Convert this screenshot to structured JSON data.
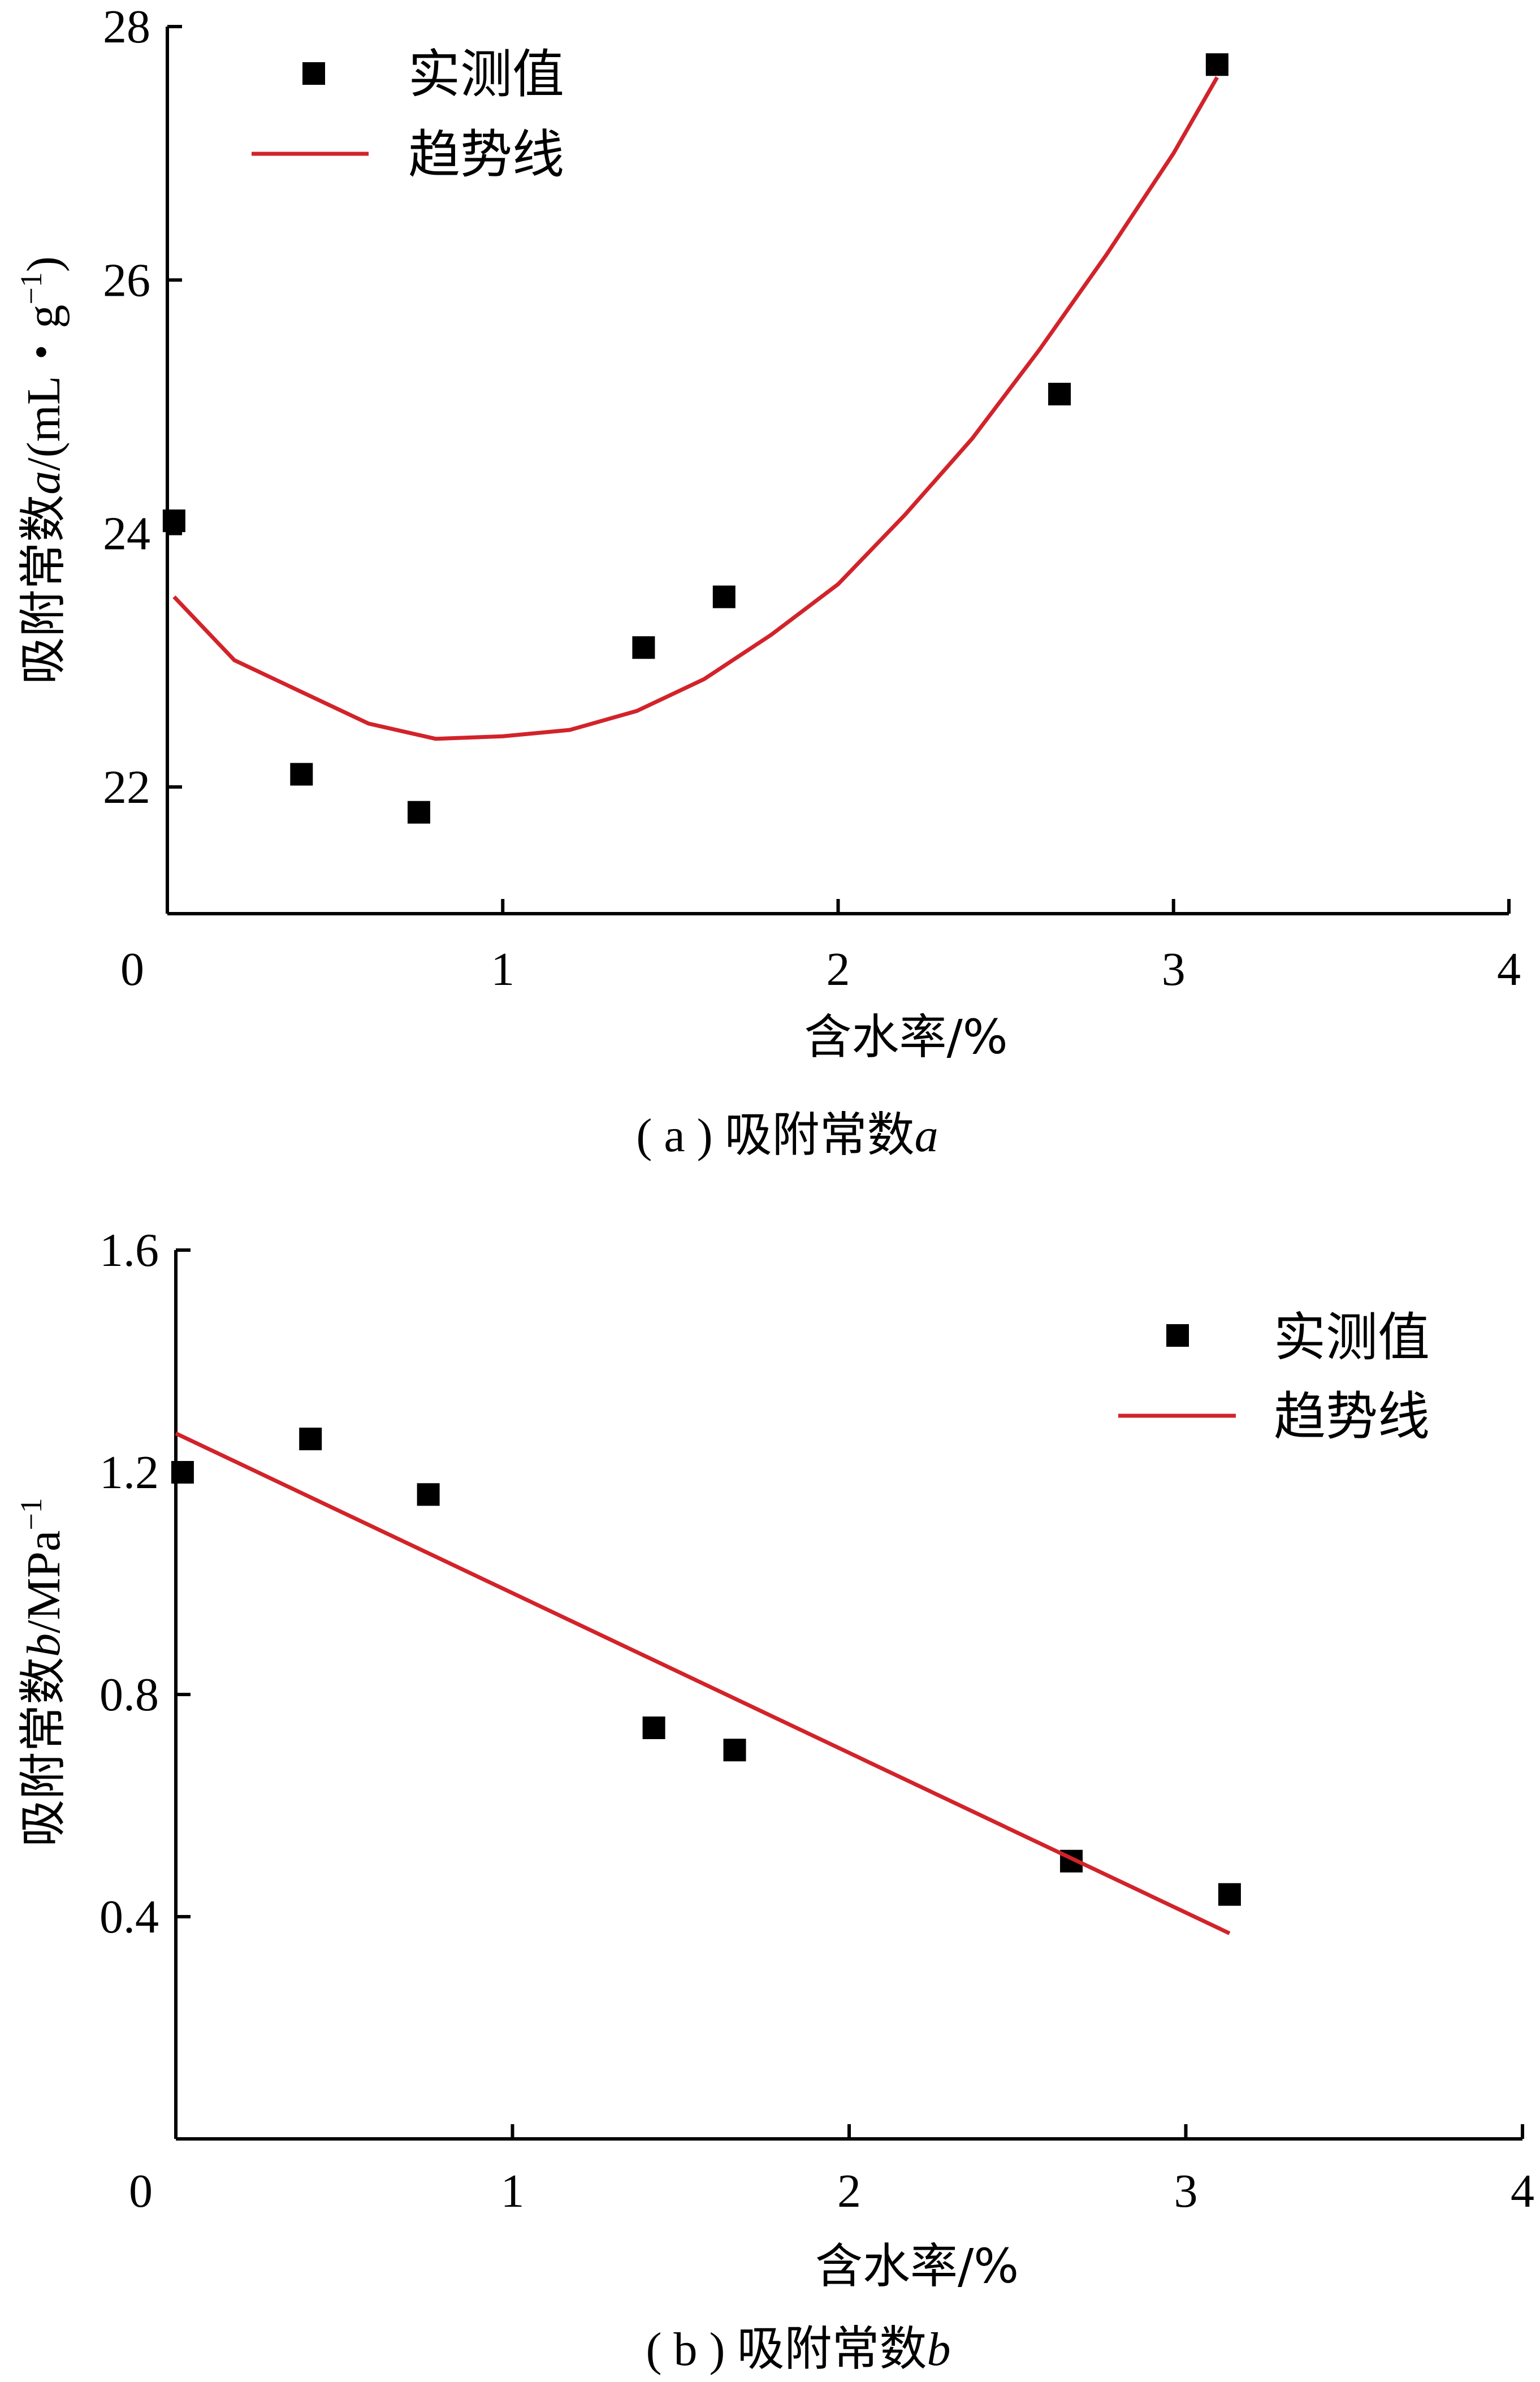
{
  "chart_data": [
    {
      "type": "scatter",
      "panel": "a",
      "caption": {
        "open": "(",
        "letter": "a",
        "close": ")",
        "text": "吸附常数",
        "var": "a"
      },
      "xlabel": "含水率/%",
      "ylabel": {
        "prefix": "吸附常数",
        "var": "a",
        "unit": "/(mL・g",
        "sup": "−1",
        "close": ")"
      },
      "xlim": [
        0,
        4
      ],
      "ylim": [
        21,
        28
      ],
      "xticks": [
        "0",
        "1",
        "2",
        "3",
        "4"
      ],
      "yticks": [
        "22",
        "24",
        "26",
        "28"
      ],
      "legend_position": "top-left",
      "series": [
        {
          "name": "实测值",
          "kind": "points",
          "color": "#000000",
          "x": [
            0.02,
            0.4,
            0.75,
            1.42,
            1.66,
            2.66,
            3.13
          ],
          "y": [
            24.1,
            22.1,
            21.8,
            23.1,
            23.5,
            25.1,
            27.7
          ]
        },
        {
          "name": "趋势线",
          "kind": "curve",
          "color": "#d2232a",
          "x": [
            0.02,
            0.2,
            0.4,
            0.6,
            0.8,
            1.0,
            1.2,
            1.4,
            1.6,
            1.8,
            2.0,
            2.2,
            2.4,
            2.6,
            2.8,
            3.0,
            3.13
          ],
          "y": [
            23.5,
            23.0,
            22.75,
            22.5,
            22.38,
            22.4,
            22.45,
            22.6,
            22.85,
            23.2,
            23.6,
            24.15,
            24.75,
            25.45,
            26.2,
            27.0,
            27.6
          ]
        }
      ]
    },
    {
      "type": "scatter",
      "panel": "b",
      "caption": {
        "open": "(",
        "letter": "b",
        "close": ")",
        "text": "吸附常数",
        "var": "b"
      },
      "xlabel": "含水率/%",
      "ylabel": {
        "prefix": "吸附常数",
        "var": "b",
        "unit": "/MPa",
        "sup": "−1",
        "close": ""
      },
      "xlim": [
        0,
        4
      ],
      "ylim": [
        0,
        1.6
      ],
      "xticks": [
        "0",
        "1",
        "2",
        "3",
        "4"
      ],
      "yticks": [
        "0.4",
        "0.8",
        "1.2",
        "1.6"
      ],
      "legend_position": "top-right",
      "series": [
        {
          "name": "实测值",
          "kind": "points",
          "color": "#000000",
          "x": [
            0.02,
            0.4,
            0.75,
            1.42,
            1.66,
            2.66,
            3.13
          ],
          "y": [
            1.2,
            1.26,
            1.16,
            0.74,
            0.7,
            0.5,
            0.44
          ]
        },
        {
          "name": "趋势线",
          "kind": "line",
          "color": "#d2232a",
          "x": [
            0.0,
            3.13
          ],
          "y": [
            1.27,
            0.37
          ]
        }
      ]
    }
  ]
}
